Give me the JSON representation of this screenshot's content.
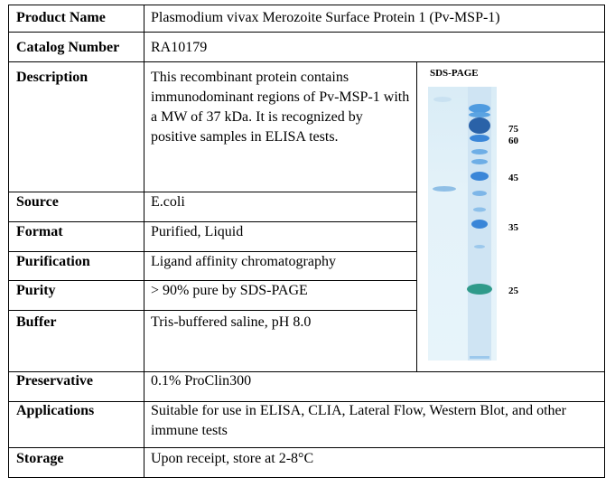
{
  "rows": [
    {
      "label": "Product Name",
      "value": "Plasmodium vivax Merozoite Surface Protein 1 (Pv-MSP-1)"
    },
    {
      "label": "Catalog Number",
      "value": "RA10179"
    },
    {
      "label": "Description",
      "value": "This recombinant protein contains immunodominant regions of Pv-MSP-1 with a MW of 37 kDa. It is recognized by positive samples in ELISA tests."
    },
    {
      "label": "Source",
      "value": "E.coli"
    },
    {
      "label": "Format",
      "value": "Purified, Liquid"
    },
    {
      "label": "Purification",
      "value": "Ligand affinity chromatography"
    },
    {
      "label": "Purity",
      "value": "> 90% pure by SDS-PAGE"
    },
    {
      "label": "Buffer",
      "value": "Tris-buffered saline, pH 8.0"
    },
    {
      "label": "Preservative",
      "value": "0.1% ProClin300"
    },
    {
      "label": "Applications",
      "value": "Suitable for use in ELISA, CLIA, Lateral Flow, Western Blot, and other immune tests"
    },
    {
      "label": "Storage",
      "value": "Upon receipt, store at 2-8°C"
    }
  ],
  "gel": {
    "title": "SDS-PAGE",
    "markers": [
      "75",
      "60",
      "45",
      "35",
      "25"
    ],
    "colors": {
      "band": "#3a86d8",
      "band_dark": "#2a62a8",
      "band_green": "#2f9a8a",
      "sample": "#8fbfe6"
    }
  }
}
